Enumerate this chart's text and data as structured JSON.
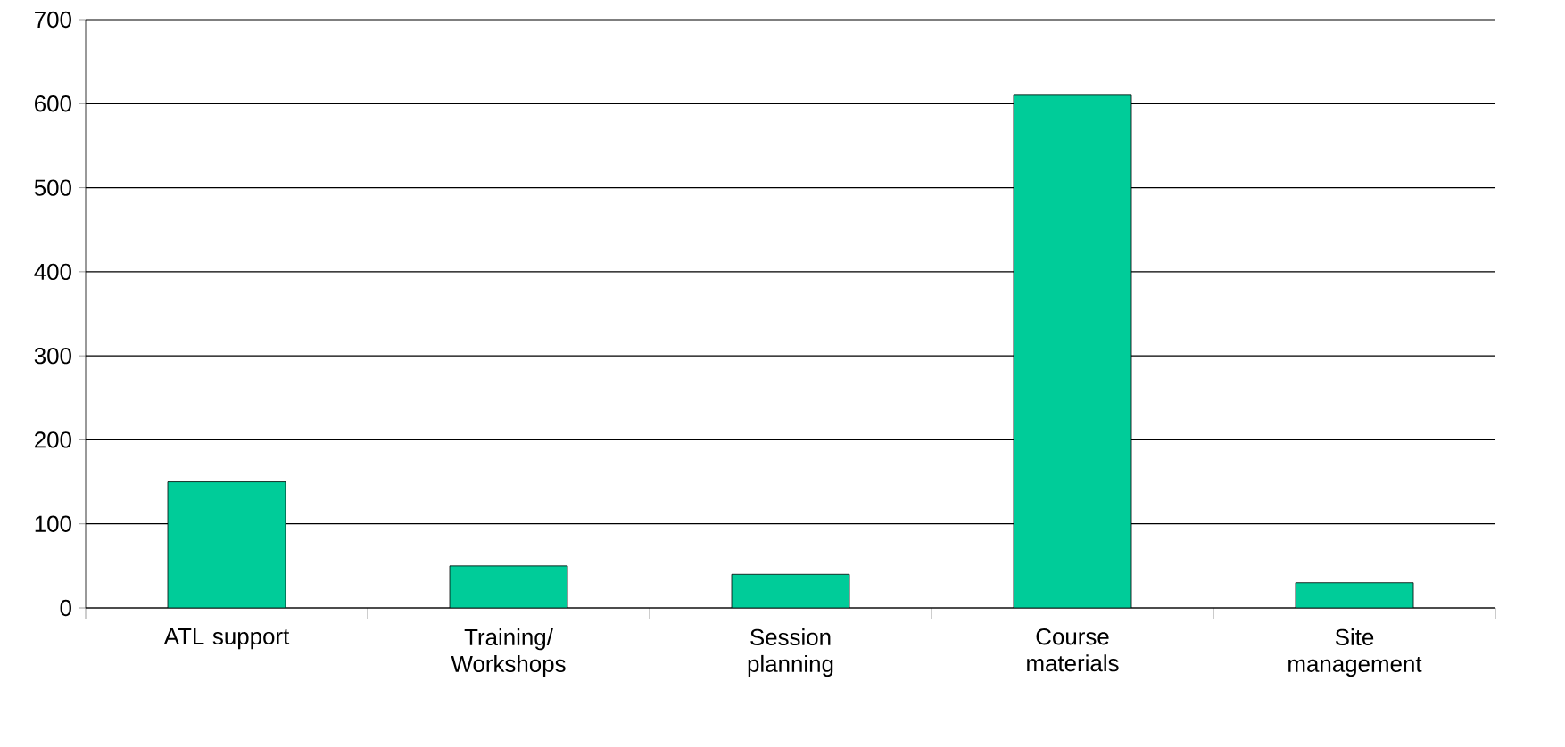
{
  "chart_data": {
    "type": "bar",
    "categories": [
      "ATL support",
      "Training/ Workshops",
      "Session planning",
      "Course materials",
      "Site management"
    ],
    "values": [
      150,
      50,
      40,
      610,
      30
    ],
    "color": "#00cc99",
    "ylim": [
      0,
      700
    ],
    "yticks": [
      0,
      100,
      200,
      300,
      400,
      500,
      600,
      700
    ],
    "grid": "y"
  }
}
